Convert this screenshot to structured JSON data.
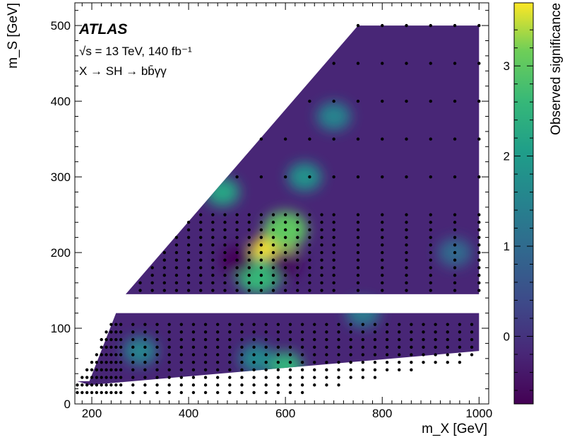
{
  "chart_data": {
    "type": "heatmap",
    "experiment": "ATLAS",
    "energy_line": "√s = 13 TeV, 140 fb⁻¹",
    "process_line": "X → SH → bb̄γγ",
    "xlabel": "m_X [GeV]",
    "ylabel": "m_S [GeV]",
    "colorbar_label": "Observed significance",
    "xlim": [
      165,
      1020
    ],
    "ylim": [
      0,
      530
    ],
    "x_ticks": [
      200,
      400,
      600,
      800,
      1000
    ],
    "y_ticks": [
      0,
      100,
      200,
      300,
      400,
      500
    ],
    "colorbar_range": [
      -0.75,
      3.7
    ],
    "colorbar_ticks": [
      0,
      1,
      2,
      3
    ],
    "colormap": "viridis",
    "colors": {
      "low": "#440154",
      "mid": "#21918c",
      "high": "#fde725",
      "background": "#ffffff"
    },
    "region_upper": {
      "description_points": [
        [
          270,
          145
        ],
        [
          1000,
          145
        ],
        [
          1000,
          500
        ],
        [
          750,
          500
        ]
      ]
    },
    "region_lower": {
      "description_points": [
        [
          170,
          30
        ],
        [
          195,
          30
        ],
        [
          250,
          120
        ],
        [
          1000,
          120
        ],
        [
          1000,
          70
        ],
        [
          195,
          25
        ]
      ]
    },
    "hotspots": [
      {
        "mX": 575,
        "mS": 200,
        "significance": 3.7
      },
      {
        "mX": 600,
        "mS": 230,
        "significance": 3.0
      },
      {
        "mX": 545,
        "mS": 170,
        "significance": 2.6
      },
      {
        "mX": 470,
        "mS": 280,
        "significance": 2.2
      },
      {
        "mX": 600,
        "mS": 50,
        "significance": 2.5
      },
      {
        "mX": 640,
        "mS": 300,
        "significance": 1.8
      },
      {
        "mX": 700,
        "mS": 380,
        "significance": 1.5
      },
      {
        "mX": 540,
        "mS": 60,
        "significance": 1.6
      },
      {
        "mX": 300,
        "mS": 70,
        "significance": 1.5
      },
      {
        "mX": 760,
        "mS": 120,
        "significance": 1.3
      },
      {
        "mX": 950,
        "mS": 200,
        "significance": 1.0
      },
      {
        "mX": 500,
        "mS": 190,
        "significance": -0.7
      },
      {
        "mX": 600,
        "mS": 185,
        "significance": -0.6
      }
    ],
    "grid_points_note": "black dots mark the signal mass points in both regions"
  }
}
